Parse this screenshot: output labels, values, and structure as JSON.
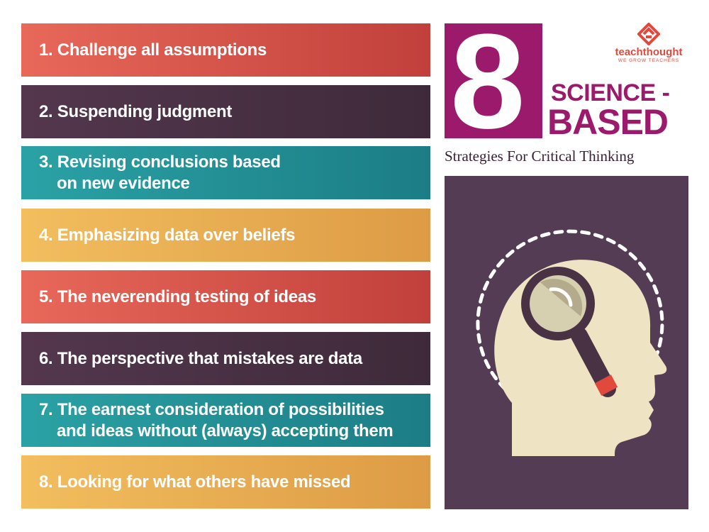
{
  "strategies": [
    {
      "lines": [
        "1. Challenge all assumptions"
      ]
    },
    {
      "lines": [
        "2. Suspending judgment"
      ]
    },
    {
      "lines": [
        "3. Revising conclusions based",
        "on new evidence"
      ]
    },
    {
      "lines": [
        "4. Emphasizing data over beliefs"
      ]
    },
    {
      "lines": [
        "5. The neverending testing of ideas"
      ]
    },
    {
      "lines": [
        "6. The perspective that mistakes are data"
      ]
    },
    {
      "lines": [
        "7. The earnest consideration of possibilities",
        "and ideas without (always) accepting them"
      ]
    },
    {
      "lines": [
        "8. Looking for what others have missed"
      ]
    }
  ],
  "title": {
    "number": "8",
    "line1": "SCIENCE -",
    "line2": "BASED",
    "subtitle": "Strategies For Critical Thinking"
  },
  "logo": {
    "brand": "teachthought",
    "tagline": "WE GROW TEACHERS"
  },
  "colors": {
    "red": "#d4524a",
    "purple": "#4a3245",
    "teal": "#238f96",
    "gold": "#e8ad52",
    "magenta": "#9c1a6c",
    "panel": "#543d54"
  },
  "illustration": {
    "icons": [
      "head-silhouette-icon",
      "magnifying-glass-icon",
      "dashed-arc"
    ]
  }
}
